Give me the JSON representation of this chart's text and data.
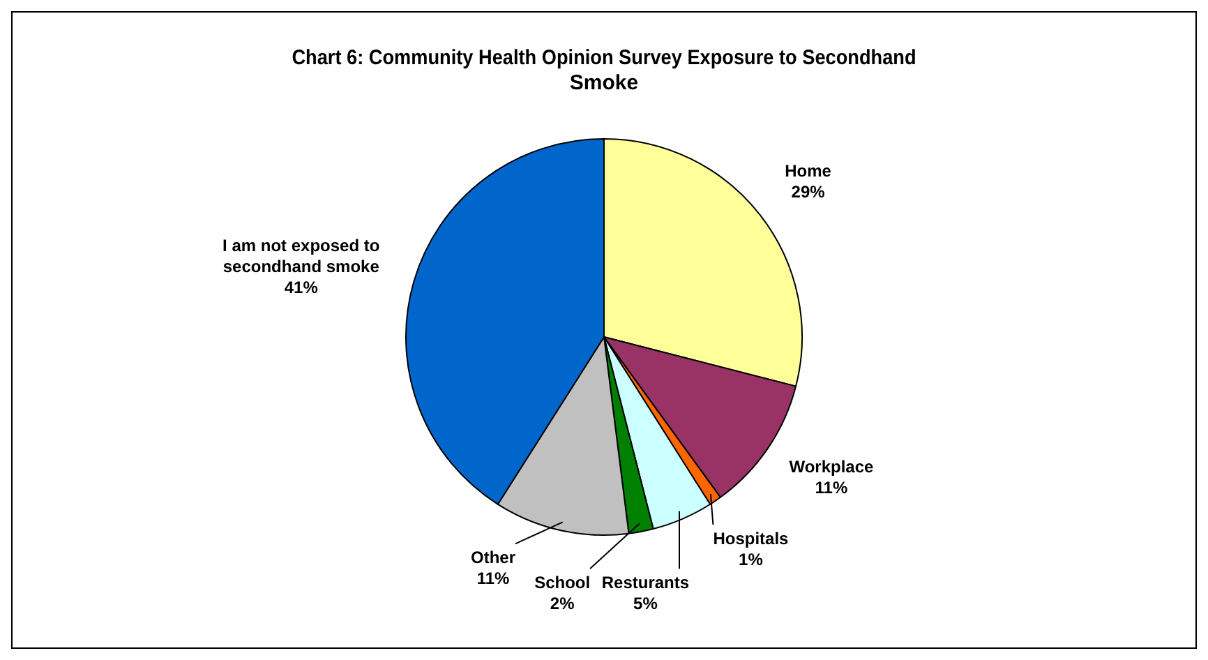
{
  "chart_data": {
    "type": "pie",
    "title": "Chart 6: Community Health Opinion Survey Exposure to Secondhand Smoke",
    "categories": [
      "Home",
      "Workplace",
      "Hospitals",
      "Resturants",
      "School",
      "Other",
      "I am not exposed to secondhand smoke"
    ],
    "values": [
      29,
      11,
      1,
      5,
      2,
      11,
      41
    ],
    "value_labels": [
      "29%",
      "11%",
      "1%",
      "5%",
      "2%",
      "11%",
      "41%"
    ],
    "colors": [
      "#ffff99",
      "#993366",
      "#ff6600",
      "#ccffff",
      "#008000",
      "#c0c0c0",
      "#0066cc"
    ],
    "legend": false
  }
}
